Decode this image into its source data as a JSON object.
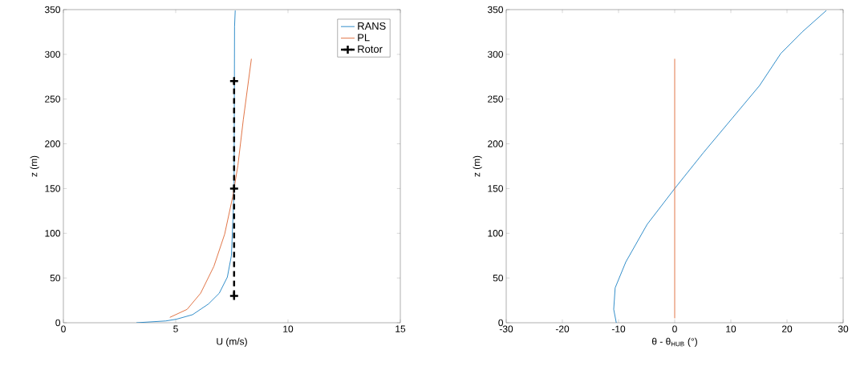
{
  "chart_data": [
    {
      "type": "line",
      "xlabel": "U (m/s)",
      "ylabel": "z (m)",
      "xlim": [
        0,
        15
      ],
      "ylim": [
        0,
        350
      ],
      "xticks": [
        0,
        5,
        10,
        15
      ],
      "yticks": [
        0,
        50,
        100,
        150,
        200,
        250,
        300,
        350
      ],
      "legend": "top right",
      "series": [
        {
          "name": "RANS",
          "color": "#0072bd",
          "x": [
            3.25,
            4.56,
            5.04,
            5.75,
            6.46,
            6.94,
            7.3,
            7.48,
            7.56,
            7.6,
            7.62,
            7.65
          ],
          "values": [
            0,
            2,
            4,
            9,
            21,
            33,
            51,
            75,
            123,
            152,
            331,
            349
          ]
        },
        {
          "name": "PL",
          "color": "#d95319",
          "x": [
            4.74,
            5.51,
            6.11,
            6.7,
            7.18,
            7.54,
            7.77,
            8.01,
            8.37
          ],
          "values": [
            6,
            15,
            33,
            63,
            99,
            141,
            176,
            227,
            295
          ]
        },
        {
          "name": "Rotor",
          "color": "#000000",
          "marker": "cross",
          "line_style": "dashed",
          "x": [
            7.6,
            7.6,
            7.6
          ],
          "values": [
            30,
            150,
            270
          ]
        }
      ]
    },
    {
      "type": "line",
      "xlabel": "θ - θ$_{HUB}$ (°)",
      "ylabel": "z (m)",
      "xlim": [
        -30,
        30
      ],
      "ylim": [
        0,
        350
      ],
      "xticks": [
        -30,
        -20,
        -10,
        0,
        10,
        20,
        30
      ],
      "yticks": [
        0,
        50,
        100,
        150,
        200,
        250,
        300,
        350
      ],
      "series": [
        {
          "color": "#0072bd",
          "x": [
            -10.4,
            -10.86,
            -10.6,
            -8.7,
            -4.9,
            0,
            5.1,
            10.3,
            15.1,
            18.9,
            22.7,
            27
          ],
          "values": [
            0,
            15,
            39,
            68,
            110,
            150,
            190,
            229,
            265,
            301,
            325,
            349
          ]
        },
        {
          "color": "#d95319",
          "x": [
            0,
            0
          ],
          "values": [
            5,
            295
          ]
        }
      ]
    }
  ]
}
